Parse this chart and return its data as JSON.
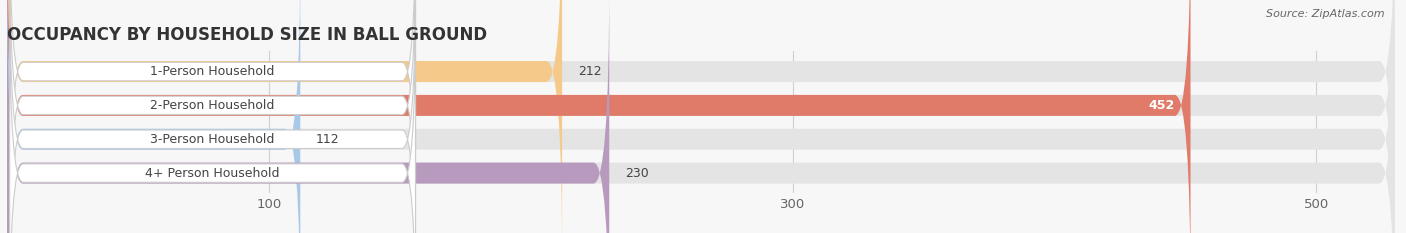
{
  "title": "OCCUPANCY BY HOUSEHOLD SIZE IN BALL GROUND",
  "source": "Source: ZipAtlas.com",
  "categories": [
    "1-Person Household",
    "2-Person Household",
    "3-Person Household",
    "4+ Person Household"
  ],
  "values": [
    212,
    452,
    112,
    230
  ],
  "bar_colors": [
    "#f5c98a",
    "#e07b6a",
    "#a8c8e8",
    "#b89abf"
  ],
  "xlim_min": 0,
  "xlim_max": 530,
  "xticks": [
    100,
    300,
    500
  ],
  "background_color": "#f7f7f7",
  "bar_bg_color": "#e4e4e4",
  "label_box_color": "#ffffff",
  "title_fontsize": 12,
  "tick_fontsize": 9.5,
  "label_fontsize": 9,
  "value_fontsize": 9,
  "bar_height": 0.62,
  "bar_gap": 1.0
}
